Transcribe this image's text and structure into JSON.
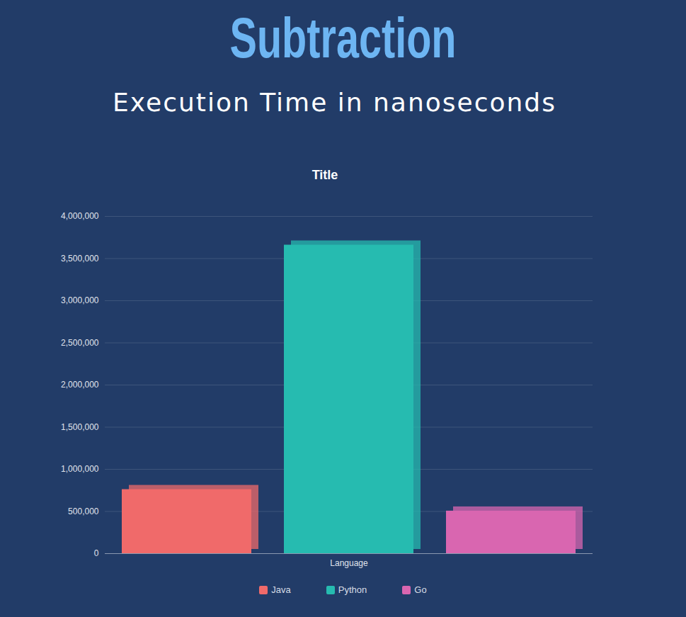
{
  "heading": "Subtraction",
  "subheading": "Execution Time in nanoseconds",
  "chart_data": {
    "type": "bar",
    "title": "Title",
    "categories": [
      "Language"
    ],
    "series": [
      {
        "name": "Java",
        "color": "#f06a6a",
        "values": [
          760000
        ]
      },
      {
        "name": "Python",
        "color": "#26bbb0",
        "values": [
          3660000
        ]
      },
      {
        "name": "Go",
        "color": "#d966b0",
        "values": [
          505000
        ]
      }
    ],
    "ylim": [
      0,
      4000000
    ],
    "yticks": [
      0,
      {
        "value": 500000,
        "label": "500,000"
      },
      {
        "value": 1000000,
        "label": "1,000,000"
      },
      {
        "value": 1500000,
        "label": "1,500,000"
      },
      {
        "value": 2000000,
        "label": "2,000,000"
      },
      {
        "value": 2500000,
        "label": "2,500,000"
      },
      {
        "value": 3000000,
        "label": "3,000,000"
      },
      {
        "value": 3500000,
        "label": "3,500,000"
      },
      {
        "value": 4000000,
        "label": "4,000,000"
      }
    ],
    "grid": true,
    "legend": "bottom"
  }
}
